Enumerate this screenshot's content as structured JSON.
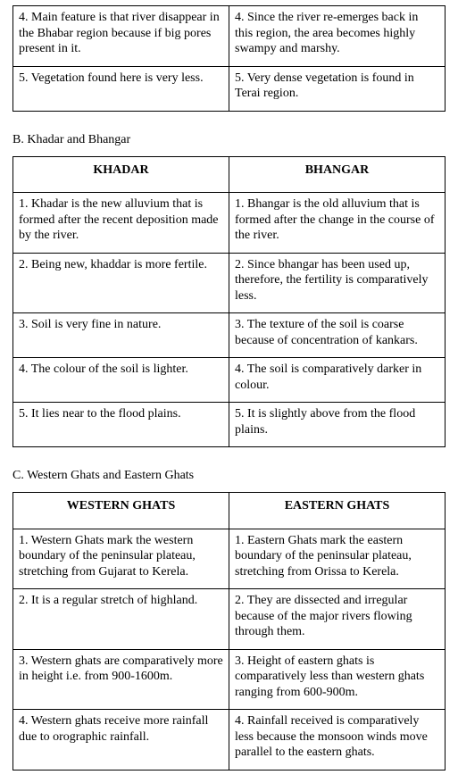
{
  "tableA": {
    "rows": [
      {
        "left": "4. Main feature is that river disappear in the Bhabar region because if big pores present in it.",
        "right": "4. Since the river re-emerges back in this region, the area becomes highly swampy and marshy."
      },
      {
        "left": "5. Vegetation found here is very less.",
        "right": "5. Very dense vegetation is found in Terai region."
      }
    ]
  },
  "sectionB": {
    "title": "B. Khadar and Bhangar"
  },
  "tableB": {
    "headers": {
      "left": "KHADAR",
      "right": "BHANGAR"
    },
    "rows": [
      {
        "left": "1. Khadar is the new alluvium that is formed after the recent deposition made by the river.",
        "right": "1. Bhangar is the old alluvium that is formed after the change in the course of the river."
      },
      {
        "left": "2. Being new, khaddar is more fertile.",
        "right": "2. Since bhangar has been used up, therefore, the fertility is comparatively less."
      },
      {
        "left": "3. Soil is very fine in nature.",
        "right": "3. The texture of the soil is coarse because of concentration of kankars."
      },
      {
        "left": "4. The colour of the soil is lighter.",
        "right": "4. The soil is comparatively darker in colour."
      },
      {
        "left": "5. It lies near to the flood plains.",
        "right": "5. It is slightly above from the flood plains."
      }
    ]
  },
  "sectionC": {
    "title": "C. Western Ghats and Eastern Ghats"
  },
  "tableC": {
    "headers": {
      "left": "WESTERN GHATS",
      "right": "EASTERN GHATS"
    },
    "rows": [
      {
        "left": "1. Western Ghats mark the western boundary of the peninsular plateau, stretching from Gujarat to Kerela.",
        "right": "1. Eastern Ghats mark the eastern boundary of the peninsular plateau, stretching from Orissa to Kerela."
      },
      {
        "left": "2. It is a regular stretch of highland.",
        "right": "2. They are dissected and irregular because of the major rivers flowing through them."
      },
      {
        "left": "3. Western ghats are comparatively more in height i.e. from 900-1600m.",
        "right": "3. Height of eastern ghats is comparatively less than western ghats ranging from 600-900m."
      },
      {
        "left": "4. Western ghats receive more rainfall due to orographic rainfall.",
        "right": "4. Rainfall received is comparatively less because the monsoon winds move parallel to the eastern ghats."
      }
    ]
  }
}
